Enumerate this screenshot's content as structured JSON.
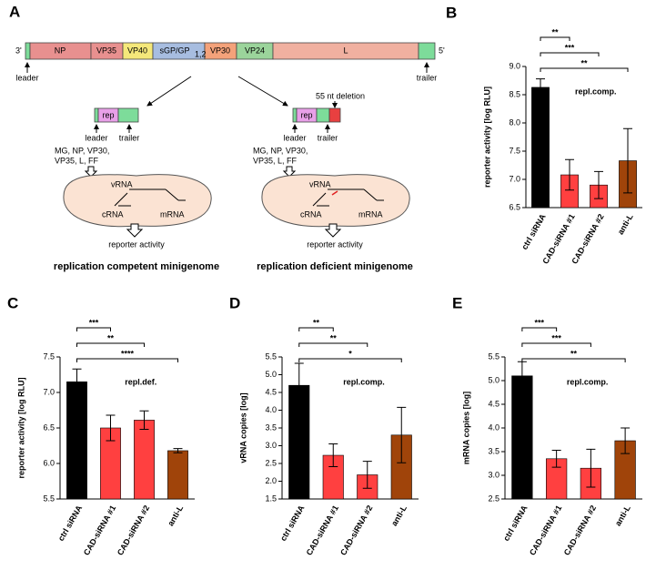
{
  "diagram": {
    "panel": "A",
    "genome": {
      "end3": "3'",
      "end5": "5'",
      "genes": [
        "NP",
        "VP35",
        "VP40",
        "sGP/GP",
        "VP30",
        "VP24",
        "L"
      ],
      "subscript": "1,2",
      "leader": "leader",
      "trailer": "trailer"
    },
    "left": {
      "rep": "rep",
      "leader": "leader",
      "trailer": "trailer",
      "inputs": [
        "MG, NP, VP30,",
        "VP35, L, FF"
      ],
      "rna": [
        "vRNA",
        "cRNA",
        "mRNA"
      ],
      "output": "reporter activity",
      "title": "replication competent minigenome"
    },
    "right": {
      "deletion": "55 nt deletion",
      "rep": "rep",
      "leader": "leader",
      "trailer": "trailer",
      "inputs": [
        "MG, NP, VP30,",
        "VP35, L, FF"
      ],
      "rna": [
        "vRNA",
        "cRNA",
        "mRNA"
      ],
      "output": "reporter activity",
      "title": "replication deficient minigenome"
    }
  },
  "chart_data": [
    {
      "type": "bar",
      "panel": "B",
      "y_label": "reporter activity [log RLU]",
      "annotation": "repl.comp.",
      "categories": [
        "ctrl siRNA",
        "CAD-siRNA #1",
        "CAD-siRNA #2",
        "anti-L"
      ],
      "values": [
        8.63,
        7.08,
        6.9,
        7.33
      ],
      "errors": [
        0.15,
        0.27,
        0.24,
        0.57
      ],
      "colors": [
        "#000000",
        "#ff4040",
        "#ff4040",
        "#a0440a"
      ],
      "significance": [
        "**",
        "***",
        "**"
      ],
      "ylim": [
        6.5,
        9.0
      ],
      "yticks": [
        6.5,
        {
          "value": 7,
          "label": "7.0"
        },
        7.5,
        {
          "value": 8,
          "label": "8.0"
        },
        8.5,
        {
          "value": 9,
          "label": "9.0"
        }
      ]
    },
    {
      "type": "bar",
      "panel": "C",
      "y_label": "reporter activity [log RLU]",
      "annotation": "repl.def.",
      "categories": [
        "ctrl siRNA",
        "CAD-siRNA #1",
        "CAD-siRNA #2",
        "anti-L"
      ],
      "values": [
        7.15,
        6.5,
        6.61,
        6.18
      ],
      "errors": [
        0.18,
        0.18,
        0.13,
        0.03
      ],
      "colors": [
        "#000000",
        "#ff4040",
        "#ff4040",
        "#a0440a"
      ],
      "significance": [
        "***",
        "**",
        "****"
      ],
      "ylim": [
        5.5,
        7.5
      ],
      "yticks": [
        5.5,
        {
          "value": 6,
          "label": "6.0"
        },
        6.5,
        {
          "value": 7,
          "label": "7.0"
        },
        7.5
      ]
    },
    {
      "type": "bar",
      "panel": "D",
      "y_label": "vRNA copies [log]",
      "annotation": "repl.comp.",
      "categories": [
        "ctrl siRNA",
        "CAD-siRNA #1",
        "CAD-siRNA #2",
        "anti-L"
      ],
      "values": [
        4.7,
        2.73,
        2.18,
        3.3
      ],
      "errors": [
        0.62,
        0.32,
        0.38,
        0.78
      ],
      "colors": [
        "#000000",
        "#ff4040",
        "#ff4040",
        "#a0440a"
      ],
      "significance": [
        "**",
        "**",
        "*"
      ],
      "ylim": [
        1.5,
        5.5
      ],
      "yticks": [
        1.5,
        {
          "value": 2,
          "label": "2.0"
        },
        2.5,
        {
          "value": 3,
          "label": "3.0"
        },
        3.5,
        {
          "value": 4,
          "label": "4.0"
        },
        4.5,
        {
          "value": 5,
          "label": "5.0"
        },
        5.5
      ]
    },
    {
      "type": "bar",
      "panel": "E",
      "y_label": "mRNA copies [log]",
      "annotation": "repl.comp.",
      "categories": [
        "ctrl siRNA",
        "CAD-siRNA #1",
        "CAD-siRNA #2",
        "anti-L"
      ],
      "values": [
        5.1,
        3.35,
        3.15,
        3.73
      ],
      "errors": [
        0.3,
        0.18,
        0.4,
        0.27
      ],
      "colors": [
        "#000000",
        "#ff4040",
        "#ff4040",
        "#a0440a"
      ],
      "significance": [
        "***",
        "***",
        "**"
      ],
      "ylim": [
        2.5,
        5.5
      ],
      "yticks": [
        2.5,
        {
          "value": 3,
          "label": "3.0"
        },
        3.5,
        {
          "value": 4,
          "label": "4.0"
        },
        4.5,
        {
          "value": 5,
          "label": "5.0"
        },
        5.5
      ]
    }
  ]
}
